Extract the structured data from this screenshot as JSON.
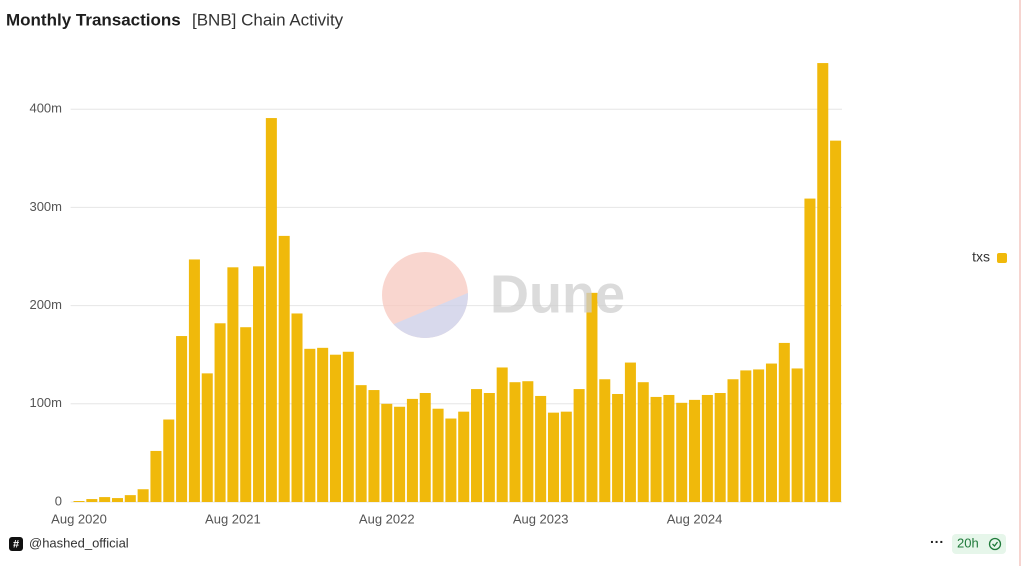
{
  "chart_data": {
    "type": "bar",
    "title": "Monthly Transactions",
    "subtitle": "[BNB] Chain Activity",
    "watermark": "Dune",
    "categories": [
      "Aug 2020",
      null,
      null,
      null,
      null,
      null,
      null,
      null,
      null,
      null,
      null,
      null,
      "Aug 2021",
      null,
      null,
      null,
      null,
      null,
      null,
      null,
      null,
      null,
      null,
      null,
      "Aug 2022",
      null,
      null,
      null,
      null,
      null,
      null,
      null,
      null,
      null,
      null,
      null,
      "Aug 2023",
      null,
      null,
      null,
      null,
      null,
      null,
      null,
      null,
      null,
      null,
      null,
      "Aug 2024",
      null,
      null,
      null,
      null,
      null,
      null,
      null,
      null,
      null,
      null,
      null
    ],
    "series": [
      {
        "name": "txs",
        "color": "#f0b90b",
        "values": [
          1000000,
          3000000,
          5000000,
          4000000,
          7000000,
          13000000,
          52000000,
          84000000,
          169000000,
          247000000,
          131000000,
          182000000,
          239000000,
          178000000,
          240000000,
          391000000,
          271000000,
          192000000,
          156000000,
          157000000,
          150000000,
          153000000,
          119000000,
          114000000,
          100000000,
          97000000,
          105000000,
          111000000,
          95000000,
          85000000,
          92000000,
          115000000,
          111000000,
          137000000,
          122000000,
          123000000,
          108000000,
          91000000,
          92000000,
          115000000,
          213000000,
          125000000,
          110000000,
          142000000,
          122000000,
          107000000,
          109000000,
          101000000,
          104000000,
          109000000,
          111000000,
          125000000,
          134000000,
          135000000,
          141000000,
          162000000,
          136000000,
          309000000,
          447000000,
          368000000
        ]
      }
    ],
    "ylim": [
      0,
      460000000
    ],
    "yticks": [
      0,
      {
        "value": 100000000,
        "label": "100m"
      },
      {
        "value": 200000000,
        "label": "200m"
      },
      {
        "value": 300000000,
        "label": "300m"
      },
      {
        "value": 400000000,
        "label": "400m"
      }
    ],
    "grid": true,
    "legend": "right"
  },
  "footer": {
    "author": "@hashed_official",
    "menu": "···",
    "refresh": "20h"
  }
}
